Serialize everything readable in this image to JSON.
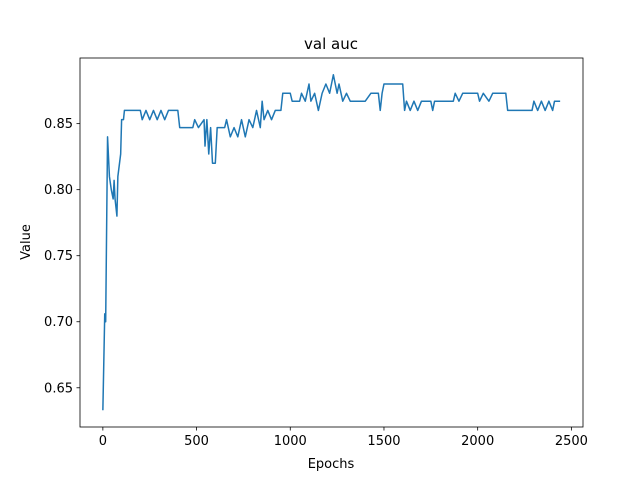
{
  "chart_data": {
    "type": "line",
    "title": "val auc",
    "x_label": "Epochs",
    "y_label": "Value",
    "x": [
      0,
      10,
      15,
      25,
      35,
      45,
      55,
      60,
      65,
      75,
      80,
      95,
      100,
      110,
      115,
      200,
      210,
      230,
      250,
      270,
      290,
      310,
      330,
      350,
      400,
      410,
      480,
      490,
      510,
      540,
      545,
      555,
      565,
      575,
      585,
      600,
      610,
      650,
      660,
      680,
      700,
      720,
      740,
      760,
      780,
      800,
      820,
      840,
      850,
      860,
      880,
      900,
      920,
      950,
      960,
      1000,
      1010,
      1050,
      1060,
      1080,
      1100,
      1110,
      1130,
      1150,
      1170,
      1190,
      1210,
      1230,
      1250,
      1260,
      1280,
      1300,
      1320,
      1400,
      1430,
      1470,
      1480,
      1490,
      1500,
      1600,
      1610,
      1620,
      1640,
      1660,
      1680,
      1700,
      1750,
      1760,
      1770,
      1870,
      1880,
      1900,
      1920,
      2000,
      2010,
      2030,
      2060,
      2080,
      2150,
      2160,
      2290,
      2300,
      2320,
      2340,
      2360,
      2380,
      2400,
      2410,
      2440
    ],
    "values": [
      0.633,
      0.706,
      0.7,
      0.84,
      0.81,
      0.8,
      0.793,
      0.807,
      0.793,
      0.78,
      0.81,
      0.827,
      0.853,
      0.853,
      0.86,
      0.86,
      0.853,
      0.86,
      0.853,
      0.86,
      0.853,
      0.86,
      0.853,
      0.86,
      0.86,
      0.847,
      0.847,
      0.853,
      0.847,
      0.853,
      0.833,
      0.853,
      0.827,
      0.847,
      0.82,
      0.82,
      0.847,
      0.847,
      0.853,
      0.84,
      0.847,
      0.84,
      0.853,
      0.84,
      0.853,
      0.847,
      0.86,
      0.847,
      0.867,
      0.853,
      0.86,
      0.853,
      0.86,
      0.86,
      0.873,
      0.873,
      0.867,
      0.867,
      0.873,
      0.867,
      0.88,
      0.867,
      0.873,
      0.86,
      0.873,
      0.88,
      0.873,
      0.887,
      0.873,
      0.88,
      0.867,
      0.873,
      0.867,
      0.867,
      0.873,
      0.873,
      0.86,
      0.873,
      0.88,
      0.88,
      0.86,
      0.867,
      0.86,
      0.867,
      0.86,
      0.867,
      0.867,
      0.86,
      0.867,
      0.867,
      0.873,
      0.867,
      0.873,
      0.873,
      0.867,
      0.873,
      0.867,
      0.873,
      0.873,
      0.86,
      0.86,
      0.867,
      0.86,
      0.867,
      0.86,
      0.867,
      0.86,
      0.867,
      0.867
    ],
    "color": "#1f77b4",
    "xlim": [
      -122,
      2562
    ],
    "xticks": [
      0,
      500,
      1000,
      1500,
      2000,
      2500
    ],
    "ylim": [
      0.6203,
      0.8997
    ],
    "yticks": [
      0.65,
      {
        "value": 0.7,
        "label": "0.70"
      },
      0.75,
      {
        "value": 0.8,
        "label": "0.80"
      },
      0.85
    ],
    "grid": false
  }
}
